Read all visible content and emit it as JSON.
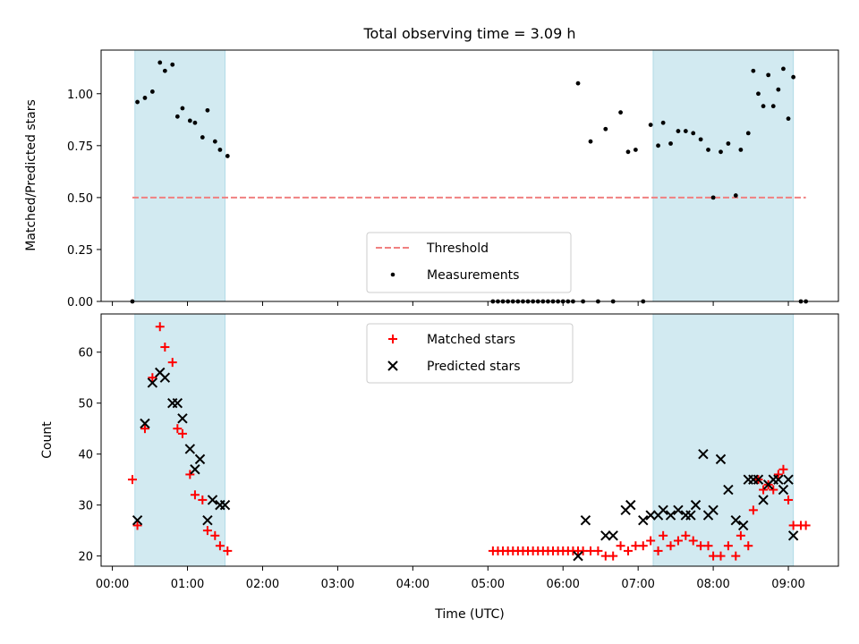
{
  "figure": {
    "title": "Total observing time = 3.09 h"
  },
  "chart_data": [
    {
      "type": "scatter",
      "panel": "top",
      "title": "Total observing time = 3.09 h",
      "xlabel": "",
      "ylabel": "Matched/Predicted stars",
      "xlim": [
        "00:00",
        "09:40"
      ],
      "ylim": [
        0,
        1.21
      ],
      "yticks": [
        "0.00",
        "0.25",
        "0.50",
        "0.75",
        "1.00"
      ],
      "grid": false,
      "legend_position": "lower-center",
      "colors": {
        "threshold": "#f08080",
        "measurements": "#000000",
        "shade": "#add8e6"
      },
      "shaded_intervals": [
        [
          "00:18",
          "01:30"
        ],
        [
          "07:12",
          "09:04"
        ]
      ],
      "threshold": {
        "name": "Threshold",
        "y": 0.5,
        "x_range": [
          "00:16",
          "09:14"
        ]
      },
      "series": [
        {
          "name": "Measurements",
          "x": [
            "00:16",
            "00:20",
            "00:26",
            "00:32",
            "00:38",
            "00:42",
            "00:48",
            "00:52",
            "00:56",
            "01:02",
            "01:06",
            "01:12",
            "01:16",
            "01:22",
            "01:26",
            "01:32",
            "05:04",
            "05:08",
            "05:12",
            "05:16",
            "05:20",
            "05:24",
            "05:28",
            "05:32",
            "05:36",
            "05:40",
            "05:44",
            "05:48",
            "05:52",
            "05:56",
            "06:00",
            "06:04",
            "06:08",
            "06:12",
            "06:16",
            "06:22",
            "06:28",
            "06:34",
            "06:40",
            "06:46",
            "06:52",
            "06:58",
            "07:04",
            "07:10",
            "07:16",
            "07:20",
            "07:26",
            "07:32",
            "07:38",
            "07:44",
            "07:50",
            "07:56",
            "08:00",
            "08:06",
            "08:12",
            "08:18",
            "08:22",
            "08:28",
            "08:32",
            "08:36",
            "08:40",
            "08:44",
            "08:48",
            "08:52",
            "08:56",
            "09:00",
            "09:04",
            "09:10",
            "09:14"
          ],
          "y": [
            0.0,
            0.96,
            0.98,
            1.01,
            1.15,
            1.11,
            1.14,
            0.89,
            0.93,
            0.87,
            0.86,
            0.79,
            0.92,
            0.77,
            0.73,
            0.7,
            0.0,
            0.0,
            0.0,
            0.0,
            0.0,
            0.0,
            0.0,
            0.0,
            0.0,
            0.0,
            0.0,
            0.0,
            0.0,
            0.0,
            0.0,
            0.0,
            0.0,
            1.05,
            0.0,
            0.77,
            0.0,
            0.83,
            0.0,
            0.91,
            0.72,
            0.73,
            0.0,
            0.85,
            0.75,
            0.86,
            0.76,
            0.82,
            0.82,
            0.81,
            0.78,
            0.73,
            0.5,
            0.72,
            0.76,
            0.51,
            0.73,
            0.81,
            1.11,
            1.0,
            0.94,
            1.09,
            0.94,
            1.02,
            1.12,
            0.88,
            1.08,
            0.0,
            0.0
          ]
        }
      ]
    },
    {
      "type": "scatter",
      "panel": "bottom",
      "xlabel": "Time (UTC)",
      "ylabel": "Count",
      "xticks": [
        "00:00",
        "01:00",
        "02:00",
        "03:00",
        "04:00",
        "05:00",
        "06:00",
        "07:00",
        "08:00",
        "09:00"
      ],
      "yticks": [
        "20",
        "30",
        "40",
        "50",
        "60"
      ],
      "xlim": [
        "00:00",
        "09:40"
      ],
      "ylim": [
        18,
        67.5
      ],
      "grid": false,
      "legend_position": "upper-center",
      "colors": {
        "matched": "#ff0000",
        "predicted": "#000000",
        "shade": "#add8e6"
      },
      "shaded_intervals": [
        [
          "00:18",
          "01:30"
        ],
        [
          "07:12",
          "09:04"
        ]
      ],
      "series": [
        {
          "name": "Matched stars",
          "marker": "plus",
          "x": [
            "00:16",
            "00:20",
            "00:26",
            "00:32",
            "00:38",
            "00:42",
            "00:48",
            "00:52",
            "00:56",
            "01:02",
            "01:06",
            "01:12",
            "01:16",
            "01:22",
            "01:26",
            "01:32",
            "05:04",
            "05:08",
            "05:12",
            "05:16",
            "05:20",
            "05:24",
            "05:28",
            "05:32",
            "05:36",
            "05:40",
            "05:44",
            "05:48",
            "05:52",
            "05:56",
            "06:00",
            "06:04",
            "06:08",
            "06:12",
            "06:16",
            "06:22",
            "06:28",
            "06:34",
            "06:40",
            "06:46",
            "06:52",
            "06:58",
            "07:04",
            "07:10",
            "07:16",
            "07:20",
            "07:26",
            "07:32",
            "07:38",
            "07:44",
            "07:50",
            "07:56",
            "08:00",
            "08:06",
            "08:12",
            "08:18",
            "08:22",
            "08:28",
            "08:32",
            "08:36",
            "08:40",
            "08:44",
            "08:48",
            "08:52",
            "08:56",
            "09:00",
            "09:04",
            "09:10",
            "09:14"
          ],
          "y": [
            35,
            26,
            45,
            55,
            65,
            61,
            58,
            45,
            44,
            36,
            32,
            31,
            25,
            24,
            22,
            21,
            21,
            21,
            21,
            21,
            21,
            21,
            21,
            21,
            21,
            21,
            21,
            21,
            21,
            21,
            21,
            21,
            21,
            21,
            21,
            21,
            21,
            20,
            20,
            22,
            21,
            22,
            22,
            23,
            21,
            24,
            22,
            23,
            24,
            23,
            22,
            22,
            20,
            20,
            22,
            20,
            24,
            22,
            29,
            35,
            33,
            34,
            33,
            36,
            37,
            31,
            26,
            26,
            26
          ]
        },
        {
          "name": "Predicted stars",
          "marker": "x",
          "x": [
            "00:20",
            "00:26",
            "00:32",
            "00:38",
            "00:42",
            "00:48",
            "00:52",
            "00:56",
            "01:02",
            "01:06",
            "01:10",
            "01:16",
            "01:20",
            "01:26",
            "01:30",
            "06:12",
            "06:18",
            "06:34",
            "06:40",
            "06:50",
            "06:54",
            "07:04",
            "07:10",
            "07:16",
            "07:20",
            "07:26",
            "07:32",
            "07:38",
            "07:42",
            "07:46",
            "07:52",
            "07:56",
            "08:00",
            "08:06",
            "08:12",
            "08:18",
            "08:24",
            "08:28",
            "08:32",
            "08:36",
            "08:40",
            "08:44",
            "08:48",
            "08:52",
            "08:56",
            "09:00",
            "09:04"
          ],
          "y": [
            27,
            46,
            54,
            56,
            55,
            50,
            50,
            47,
            41,
            37,
            39,
            27,
            31,
            30,
            30,
            20,
            27,
            24,
            24,
            29,
            30,
            27,
            28,
            28,
            29,
            28,
            29,
            28,
            28,
            30,
            40,
            28,
            29,
            39,
            33,
            27,
            26,
            35,
            35,
            35,
            31,
            34,
            35,
            35,
            33,
            35,
            24
          ]
        }
      ]
    }
  ]
}
